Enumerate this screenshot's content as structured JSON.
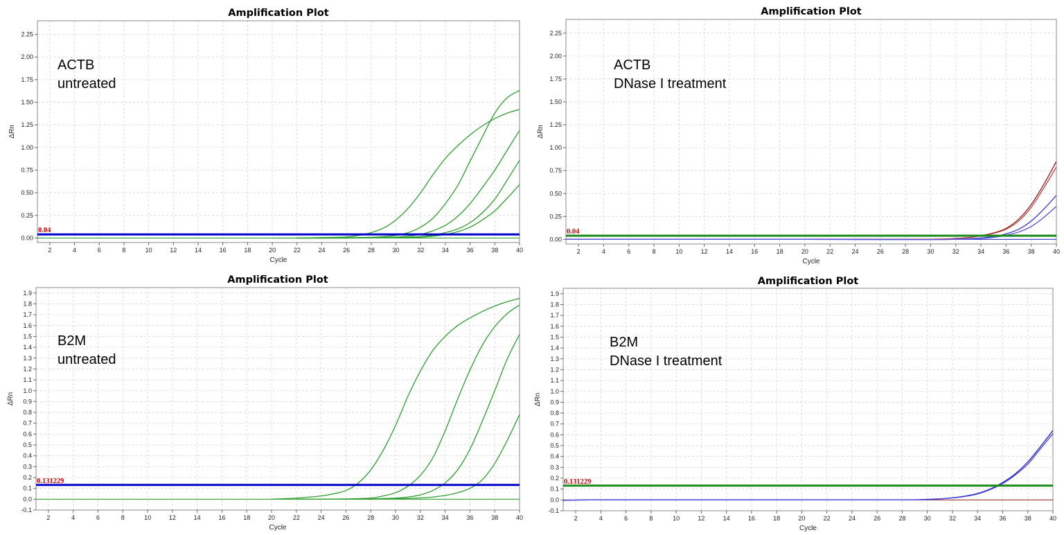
{
  "chart_data": [
    {
      "type": "line",
      "title": "Amplification Plot",
      "xlabel": "Cycle",
      "ylabel": "ΔRn",
      "xlim": [
        1,
        40
      ],
      "ylim": [
        -0.05,
        2.4
      ],
      "yticks": [
        0.0,
        0.25,
        0.5,
        0.75,
        1.0,
        1.25,
        1.5,
        1.75,
        2.0,
        2.25
      ],
      "ytick_labels": [
        "0.00",
        "0.25",
        "0.50",
        "0.75",
        "1.00",
        "1.25",
        "1.50",
        "1.75",
        "2.00",
        "2.25"
      ],
      "xticks": [
        2,
        4,
        6,
        8,
        10,
        12,
        14,
        16,
        18,
        20,
        22,
        24,
        26,
        28,
        30,
        32,
        34,
        36,
        38,
        40
      ],
      "grid": true,
      "annotation": [
        "ACTB",
        "untreated"
      ],
      "threshold": {
        "label": "0.04",
        "value": 0.04,
        "color": "#0000cc"
      },
      "baseline_color": "#1a9a1a",
      "series": [
        {
          "color": "#2e9e2e",
          "x": [
            20,
            22,
            24,
            26,
            27,
            28,
            29,
            30,
            31,
            32,
            33,
            34,
            35,
            36,
            37,
            38,
            39,
            40
          ],
          "y": [
            0,
            0,
            0.005,
            0.012,
            0.03,
            0.06,
            0.11,
            0.2,
            0.33,
            0.5,
            0.7,
            0.88,
            1.02,
            1.14,
            1.24,
            1.32,
            1.38,
            1.42
          ]
        },
        {
          "color": "#2e9e2e",
          "x": [
            22,
            24,
            26,
            28,
            29,
            30,
            31,
            32,
            33,
            34,
            35,
            36,
            37,
            38,
            39,
            40
          ],
          "y": [
            0,
            0,
            0.003,
            0.008,
            0.015,
            0.03,
            0.06,
            0.12,
            0.22,
            0.38,
            0.58,
            0.85,
            1.12,
            1.38,
            1.55,
            1.63
          ]
        },
        {
          "color": "#2e9e2e",
          "x": [
            22,
            24,
            26,
            28,
            30,
            31,
            32,
            33,
            34,
            35,
            36,
            37,
            38,
            39,
            40
          ],
          "y": [
            0,
            0,
            0,
            0.003,
            0.01,
            0.02,
            0.04,
            0.08,
            0.14,
            0.24,
            0.38,
            0.56,
            0.75,
            0.97,
            1.19
          ]
        },
        {
          "color": "#2e9e2e",
          "x": [
            22,
            24,
            26,
            28,
            30,
            32,
            33,
            34,
            35,
            36,
            37,
            38,
            39,
            40
          ],
          "y": [
            0,
            0,
            0,
            0.002,
            0.005,
            0.015,
            0.03,
            0.06,
            0.1,
            0.17,
            0.28,
            0.43,
            0.64,
            0.86
          ]
        },
        {
          "color": "#2e9e2e",
          "x": [
            22,
            24,
            26,
            28,
            30,
            32,
            33,
            34,
            35,
            36,
            37,
            38,
            39,
            40
          ],
          "y": [
            0,
            0,
            0,
            0.001,
            0.003,
            0.01,
            0.02,
            0.04,
            0.07,
            0.12,
            0.2,
            0.3,
            0.44,
            0.59
          ]
        }
      ]
    },
    {
      "type": "line",
      "title": "Amplification Plot",
      "xlabel": "Cycle",
      "ylabel": "ΔRn",
      "xlim": [
        1,
        40
      ],
      "ylim": [
        -0.05,
        2.4
      ],
      "yticks": [
        0.0,
        0.25,
        0.5,
        0.75,
        1.0,
        1.25,
        1.5,
        1.75,
        2.0,
        2.25
      ],
      "ytick_labels": [
        "0.00",
        "0.25",
        "0.50",
        "0.75",
        "1.00",
        "1.25",
        "1.50",
        "1.75",
        "2.00",
        "2.25"
      ],
      "xticks": [
        2,
        4,
        6,
        8,
        10,
        12,
        14,
        16,
        18,
        20,
        22,
        24,
        26,
        28,
        30,
        32,
        34,
        36,
        38,
        40
      ],
      "grid": true,
      "annotation": [
        "ACTB",
        "DNase I treatment"
      ],
      "threshold": {
        "label": "0.04",
        "value": 0.04,
        "color": "#1a8a1a"
      },
      "baseline_color": "#2020c0",
      "series": [
        {
          "color": "#8b1a1a",
          "x": [
            1,
            20,
            30,
            32,
            33,
            34,
            35,
            36,
            37,
            38,
            39,
            40
          ],
          "y": [
            0,
            0,
            0.002,
            0.01,
            0.02,
            0.04,
            0.07,
            0.12,
            0.22,
            0.38,
            0.6,
            0.85
          ]
        },
        {
          "color": "#c04040",
          "x": [
            1,
            20,
            30,
            32,
            33,
            34,
            35,
            36,
            37,
            38,
            39,
            40
          ],
          "y": [
            0,
            0,
            0.002,
            0.01,
            0.02,
            0.038,
            0.065,
            0.11,
            0.2,
            0.35,
            0.56,
            0.79
          ]
        },
        {
          "color": "#3a3ad0",
          "x": [
            1,
            20,
            30,
            32,
            34,
            35,
            36,
            37,
            38,
            39,
            40
          ],
          "y": [
            0,
            0,
            -0.002,
            0.003,
            0.015,
            0.03,
            0.06,
            0.11,
            0.2,
            0.33,
            0.48
          ]
        },
        {
          "color": "#5050e0",
          "x": [
            1,
            20,
            30,
            32,
            34,
            35,
            36,
            37,
            38,
            39,
            40
          ],
          "y": [
            0,
            0,
            -0.002,
            0.002,
            0.01,
            0.022,
            0.045,
            0.08,
            0.14,
            0.24,
            0.36
          ]
        }
      ]
    },
    {
      "type": "line",
      "title": "Amplification Plot",
      "xlabel": "Cycle",
      "ylabel": "ΔRn",
      "xlim": [
        1,
        40
      ],
      "ylim": [
        -0.1,
        1.95
      ],
      "yticks": [
        -0.1,
        0,
        0.1,
        0.2,
        0.3,
        0.4,
        0.5,
        0.6,
        0.7,
        0.8,
        0.9,
        1.0,
        1.1,
        1.2,
        1.3,
        1.4,
        1.5,
        1.6,
        1.7,
        1.8,
        1.9
      ],
      "ytick_labels": [
        "-0.1",
        "0.0",
        "0.1",
        "0.2",
        "0.3",
        "0.4",
        "0.5",
        "0.6",
        "0.7",
        "0.8",
        "0.9",
        "1.0",
        "1.1",
        "1.2",
        "1.3",
        "1.4",
        "1.5",
        "1.6",
        "1.7",
        "1.8",
        "1.9"
      ],
      "xticks": [
        2,
        4,
        6,
        8,
        10,
        12,
        14,
        16,
        18,
        20,
        22,
        24,
        26,
        28,
        30,
        32,
        34,
        36,
        38,
        40
      ],
      "grid": true,
      "annotation": [
        "B2M",
        "untreated"
      ],
      "threshold": {
        "label": "0.131229",
        "value": 0.131229,
        "color": "#0000cc"
      },
      "baseline_color": "#1a9a1a",
      "series": [
        {
          "color": "#2e9e2e",
          "x": [
            20,
            22,
            24,
            25,
            26,
            27,
            28,
            29,
            30,
            31,
            32,
            33,
            34,
            35,
            36,
            37,
            38,
            39,
            40
          ],
          "y": [
            0,
            0.01,
            0.03,
            0.05,
            0.08,
            0.15,
            0.27,
            0.45,
            0.68,
            0.95,
            1.18,
            1.37,
            1.5,
            1.6,
            1.67,
            1.73,
            1.78,
            1.82,
            1.85
          ]
        },
        {
          "color": "#2e9e2e",
          "x": [
            22,
            24,
            26,
            28,
            29,
            30,
            31,
            32,
            33,
            34,
            35,
            36,
            37,
            38,
            39,
            40
          ],
          "y": [
            0,
            0,
            0.003,
            0.01,
            0.03,
            0.06,
            0.12,
            0.22,
            0.38,
            0.63,
            0.92,
            1.19,
            1.42,
            1.59,
            1.71,
            1.79
          ]
        },
        {
          "color": "#2e9e2e",
          "x": [
            22,
            24,
            26,
            28,
            30,
            31,
            32,
            33,
            34,
            35,
            36,
            37,
            38,
            39,
            40
          ],
          "y": [
            0,
            0,
            0,
            0.003,
            0.01,
            0.02,
            0.04,
            0.08,
            0.15,
            0.27,
            0.46,
            0.72,
            1.0,
            1.29,
            1.52
          ]
        },
        {
          "color": "#2e9e2e",
          "x": [
            22,
            24,
            26,
            28,
            30,
            32,
            33,
            34,
            35,
            36,
            37,
            38,
            39,
            40
          ],
          "y": [
            0,
            0,
            0,
            0.001,
            0.004,
            0.012,
            0.02,
            0.035,
            0.06,
            0.1,
            0.18,
            0.33,
            0.54,
            0.78
          ]
        }
      ]
    },
    {
      "type": "line",
      "title": "Amplification Plot",
      "xlabel": "Cycle",
      "ylabel": "ΔRn",
      "xlim": [
        1,
        40
      ],
      "ylim": [
        -0.1,
        1.95
      ],
      "yticks": [
        -0.1,
        0,
        0.1,
        0.2,
        0.3,
        0.4,
        0.5,
        0.6,
        0.7,
        0.8,
        0.9,
        1.0,
        1.1,
        1.2,
        1.3,
        1.4,
        1.5,
        1.6,
        1.7,
        1.8,
        1.9
      ],
      "ytick_labels": [
        "-0.1",
        "0.0",
        "0.1",
        "0.2",
        "0.3",
        "0.4",
        "0.5",
        "0.6",
        "0.7",
        "0.8",
        "0.9",
        "1.0",
        "1.1",
        "1.2",
        "1.3",
        "1.4",
        "1.5",
        "1.6",
        "1.7",
        "1.8",
        "1.9"
      ],
      "xticks": [
        2,
        4,
        6,
        8,
        10,
        12,
        14,
        16,
        18,
        20,
        22,
        24,
        26,
        28,
        30,
        32,
        34,
        36,
        38,
        40
      ],
      "grid": true,
      "annotation": [
        "B2M",
        "DNase I treatment"
      ],
      "threshold": {
        "label": "0.131229",
        "value": 0.131229,
        "color": "#1a8a1a"
      },
      "baseline_color": "#8b1a1a",
      "series": [
        {
          "color": "#2020c0",
          "x": [
            1,
            3,
            20,
            28,
            30,
            31,
            32,
            33,
            34,
            35,
            36,
            37,
            38,
            39,
            40
          ],
          "y": [
            -0.01,
            0,
            0,
            0,
            0.005,
            0.01,
            0.02,
            0.035,
            0.06,
            0.1,
            0.16,
            0.24,
            0.35,
            0.49,
            0.64
          ]
        },
        {
          "color": "#4040e0",
          "x": [
            1,
            3,
            20,
            28,
            30,
            31,
            32,
            33,
            34,
            35,
            36,
            37,
            38,
            39,
            40
          ],
          "y": [
            -0.01,
            0,
            0,
            0,
            0.004,
            0.009,
            0.018,
            0.032,
            0.055,
            0.095,
            0.15,
            0.23,
            0.33,
            0.47,
            0.61
          ]
        }
      ]
    }
  ]
}
